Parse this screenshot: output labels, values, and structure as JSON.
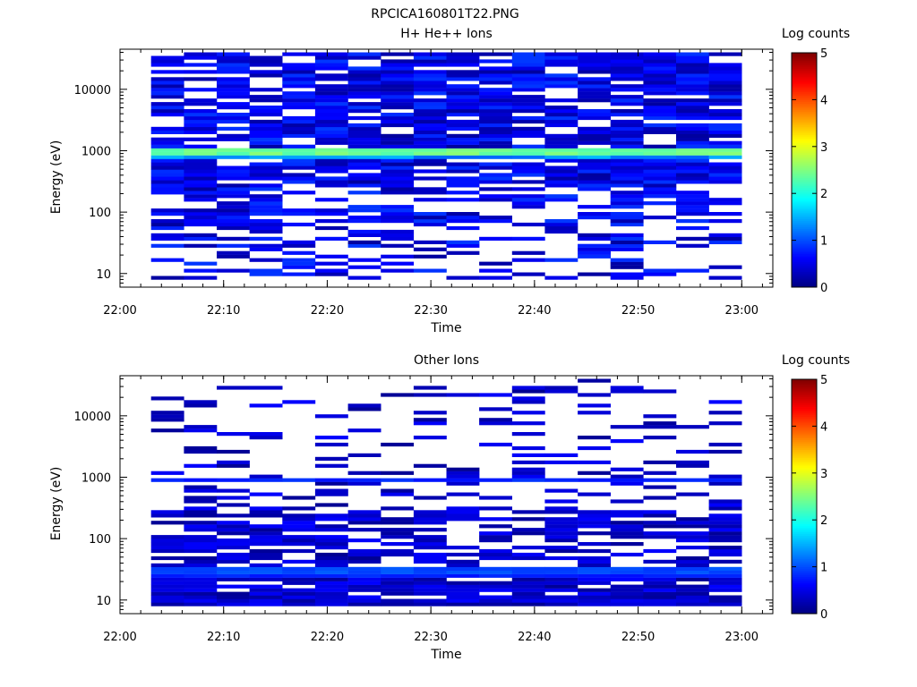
{
  "figure_title": "RPCICA160801T22.PNG",
  "chart_data": [
    {
      "type": "heatmap",
      "title": "H+ He++ Ions",
      "xlabel": "Time",
      "ylabel": "Energy (eV)",
      "yscale": "log",
      "xlim": [
        "22:00",
        "23:03"
      ],
      "ylim": [
        6,
        45000
      ],
      "x_ticks": [
        "22:00",
        "22:10",
        "22:20",
        "22:30",
        "22:40",
        "22:50",
        "23:00"
      ],
      "y_ticks": [
        "10",
        "100",
        "1000",
        "10000"
      ],
      "colorbar": {
        "label": "Log counts",
        "range": [
          0,
          5
        ],
        "ticks": [
          "0",
          "1",
          "2",
          "3",
          "4",
          "5"
        ]
      },
      "data_start": "22:03",
      "data_end": "23:00",
      "time_bins": 18,
      "dominant_band": {
        "energy_ev": 950,
        "log_counts": 2.4
      },
      "typical_log_counts": 0.5,
      "grid": false
    },
    {
      "type": "heatmap",
      "title": "Other Ions",
      "xlabel": "Time",
      "ylabel": "Energy (eV)",
      "yscale": "log",
      "xlim": [
        "22:00",
        "23:03"
      ],
      "ylim": [
        6,
        45000
      ],
      "x_ticks": [
        "22:00",
        "22:10",
        "22:20",
        "22:30",
        "22:40",
        "22:50",
        "23:00"
      ],
      "y_ticks": [
        "10",
        "100",
        "1000",
        "10000"
      ],
      "colorbar": {
        "label": "Log counts",
        "range": [
          0,
          5
        ],
        "ticks": [
          "0",
          "1",
          "2",
          "3",
          "4",
          "5"
        ]
      },
      "data_start": "22:03",
      "data_end": "23:00",
      "time_bins": 18,
      "dominant_band": {
        "energy_ev": 30,
        "log_counts": 1.1
      },
      "secondary_band": {
        "energy_ev": 950,
        "log_counts": 0.8
      },
      "typical_log_counts": 0.3,
      "grid": false
    }
  ]
}
